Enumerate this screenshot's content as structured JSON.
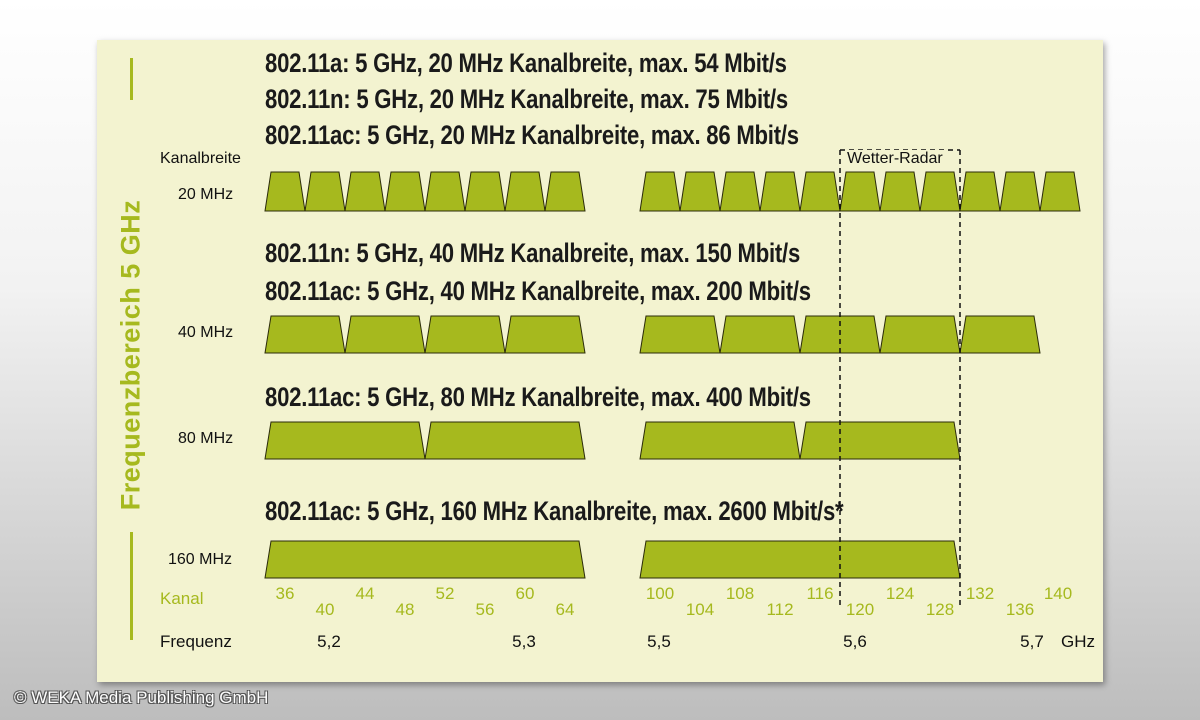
{
  "side_title": "Frequenzbereich 5 GHz",
  "headings": {
    "h1": "802.11a: 5 GHz, 20 MHz Kanalbreite, max. 54 Mbit/s",
    "h2": "802.11n: 5 GHz, 20 MHz Kanalbreite, max. 75 Mbit/s",
    "h3": "802.11ac: 5 GHz, 20 MHz Kanalbreite, max. 86 Mbit/s",
    "h4": "802.11n: 5 GHz, 40 MHz Kanalbreite, max. 150 Mbit/s",
    "h5": "802.11ac: 5 GHz, 40 MHz Kanalbreite, max. 200 Mbit/s",
    "h6": "802.11ac: 5 GHz, 80 MHz Kanalbreite, max. 400 Mbit/s",
    "h7": "802.11ac: 5 GHz, 160 MHz Kanalbreite, max. 2600 Mbit/s*"
  },
  "labels": {
    "kanalbreite": "Kanalbreite",
    "w20": "20 MHz",
    "w40": "40 MHz",
    "w80": "80 MHz",
    "w160": "160 MHz",
    "kanal": "Kanal",
    "frequenz": "Frequenz",
    "radar": "Wetter-Radar"
  },
  "channels": [
    "36",
    "40",
    "44",
    "48",
    "52",
    "56",
    "60",
    "64",
    "100",
    "104",
    "108",
    "112",
    "116",
    "120",
    "124",
    "128",
    "132",
    "136",
    "140"
  ],
  "frequencies": [
    "5,2",
    "5,3",
    "5,5",
    "5,6",
    "5,7",
    "GHz"
  ],
  "copyright": "© WEKA Media Publishing GmbH",
  "colors": {
    "band": "#a6b91e",
    "panel": "#f3f3d0",
    "accent": "#a6b91e"
  }
}
